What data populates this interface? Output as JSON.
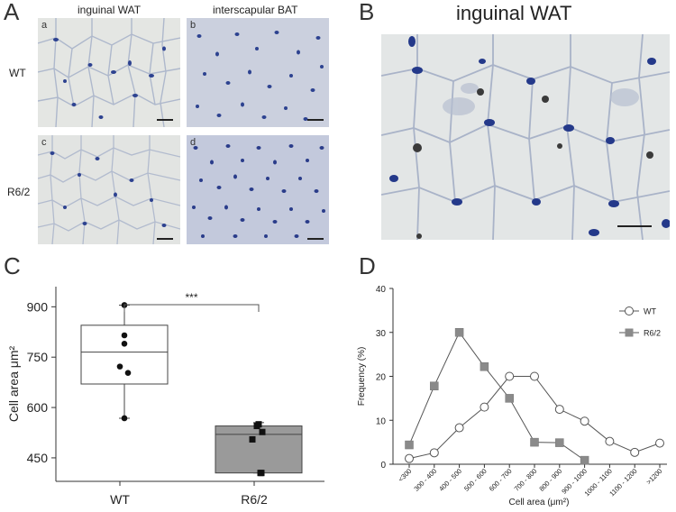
{
  "panels": {
    "A": "A",
    "B": "B",
    "C": "C",
    "D": "D"
  },
  "panelA": {
    "col_headers": [
      "inguinal WAT",
      "interscapular BAT"
    ],
    "row_labels": [
      "WT",
      "R6/2"
    ],
    "subpanels": [
      "a",
      "b",
      "c",
      "d"
    ]
  },
  "panelB": {
    "title": "inguinal WAT"
  },
  "colors": {
    "tissue_bg": "#e6e9ec",
    "membrane": "#b9c1d2",
    "nucleus": "#2a3f8f",
    "bat_bg": "#c7cde0",
    "box_wt": "#ffffff",
    "box_r62": "#9a9a9a",
    "marker_r62": "#8a8a8a"
  },
  "chart_data": [
    {
      "type": "box",
      "ylabel": "Cell area μm²",
      "yticks": [
        450,
        600,
        750,
        900
      ],
      "ylim": [
        380,
        960
      ],
      "categories": [
        "WT",
        "R6/2"
      ],
      "boxes": [
        {
          "category": "WT",
          "min": 568,
          "q1": 670,
          "median": 765,
          "q3": 845,
          "max": 905,
          "points": [
            905,
            815,
            790,
            722,
            703,
            568
          ]
        },
        {
          "category": "R6/2",
          "min": 405,
          "q1": 405,
          "median": 520,
          "q3": 545,
          "max": 555,
          "points": [
            550,
            545,
            527,
            505,
            405,
            405
          ]
        }
      ],
      "significance": {
        "label": "***",
        "between": [
          "WT",
          "R6/2"
        ]
      }
    },
    {
      "type": "line",
      "xlabel": "Cell area (μm²)",
      "ylabel": "Frequency (%)",
      "yticks": [
        0,
        10,
        20,
        30,
        40
      ],
      "ylim": [
        0,
        40
      ],
      "categories": [
        "<300",
        "300 - 400",
        "400 - 500",
        "500 - 600",
        "600 - 700",
        "700 - 800",
        "800 - 900",
        "900 - 1000",
        "1000 - 1100",
        "1100 - 1200",
        ">1200"
      ],
      "legend_position": "top-right",
      "series": [
        {
          "name": "WT",
          "marker": "circle",
          "values": [
            1.3,
            2.6,
            8.3,
            13.0,
            20.0,
            20.0,
            12.5,
            9.8,
            5.2,
            2.7,
            4.8
          ]
        },
        {
          "name": "R6/2",
          "marker": "square",
          "values": [
            4.4,
            17.8,
            30.0,
            22.2,
            15.0,
            5.0,
            4.9,
            0.9,
            null,
            null,
            null
          ]
        }
      ]
    }
  ]
}
